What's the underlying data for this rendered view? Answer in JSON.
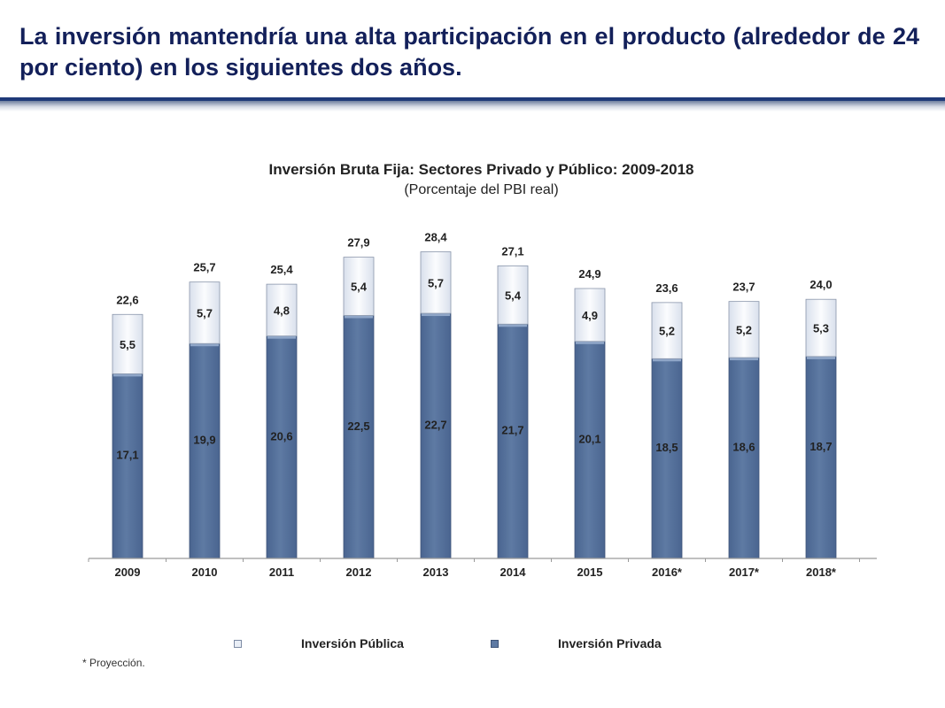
{
  "slide": {
    "headline": "La inversión mantendría una alta participación en el producto (alrededor de 24 por ciento) en los siguientes dos años.",
    "footnote": "* Proyección."
  },
  "colors": {
    "headline": "#13205a",
    "privada": "#5e7aa3",
    "publica": "#e9eef6",
    "rule": "#1f3a78"
  },
  "chart_data": {
    "type": "bar",
    "stacked": true,
    "title": "Inversión Bruta Fija: Sectores Privado y Público: 2009-2018",
    "subtitle": "(Porcentaje del PBI real)",
    "categories": [
      "2009",
      "2010",
      "2011",
      "2012",
      "2013",
      "2014",
      "2015",
      "2016*",
      "2017*",
      "2018*"
    ],
    "series": [
      {
        "name": "Inversión Privada",
        "values": [
          17.1,
          19.9,
          20.6,
          22.5,
          22.7,
          21.7,
          20.1,
          18.5,
          18.6,
          18.7
        ],
        "labels": [
          "17,1",
          "19,9",
          "20,6",
          "22,5",
          "22,7",
          "21,7",
          "20,1",
          "18,5",
          "18,6",
          "18,7"
        ],
        "color": "#5e7aa3"
      },
      {
        "name": "Inversión Pública",
        "values": [
          5.5,
          5.7,
          4.8,
          5.4,
          5.7,
          5.4,
          4.9,
          5.2,
          5.2,
          5.3
        ],
        "labels": [
          "5,5",
          "5,7",
          "4,8",
          "5,4",
          "5,7",
          "5,4",
          "4,9",
          "5,2",
          "5,2",
          "5,3"
        ],
        "color": "#e9eef6"
      }
    ],
    "totals": [
      22.6,
      25.7,
      25.4,
      27.9,
      28.4,
      27.1,
      24.9,
      23.6,
      23.7,
      24.0
    ],
    "total_labels": [
      "22,6",
      "25,7",
      "25,4",
      "27,9",
      "28,4",
      "27,1",
      "24,9",
      "23,6",
      "23,7",
      "24,0"
    ],
    "ylim": [
      0,
      30
    ],
    "grid": false,
    "legend": {
      "position": "bottom",
      "entries": [
        "Inversión Pública",
        "Inversión Privada"
      ]
    }
  }
}
